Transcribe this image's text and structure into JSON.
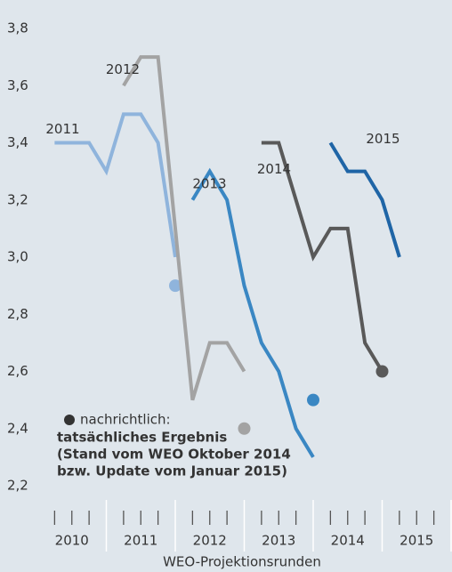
{
  "chart_data": {
    "type": "line",
    "xlabel": "WEO-Projektionsrunden",
    "xlim": [
      2010,
      2016
    ],
    "ylim": [
      2.2,
      3.8
    ],
    "yticks": [
      {
        "value": 2.2,
        "label": "2,2"
      },
      {
        "value": 2.4,
        "label": "2,4"
      },
      {
        "value": 2.6,
        "label": "2,6"
      },
      {
        "value": 2.8,
        "label": "2,8"
      },
      {
        "value": 3.0,
        "label": "3,0"
      },
      {
        "value": 3.2,
        "label": "3,2"
      },
      {
        "value": 3.4,
        "label": "3,4"
      },
      {
        "value": 3.6,
        "label": "3,6"
      },
      {
        "value": 3.8,
        "label": "3,8"
      }
    ],
    "xticks": [
      2010.25,
      2010.5,
      2010.75,
      2011,
      2011.25,
      2011.5,
      2011.75,
      2012,
      2012.25,
      2012.5,
      2012.75,
      2013,
      2013.25,
      2013.5,
      2013.75,
      2014,
      2014.25,
      2014.5,
      2014.75,
      2015,
      2015.25,
      2015.5,
      2015.75,
      2016
    ],
    "x_labels": [
      {
        "value": 2010.5,
        "label": "2010"
      },
      {
        "value": 2011.5,
        "label": "2011"
      },
      {
        "value": 2012.5,
        "label": "2012"
      },
      {
        "value": 2013.5,
        "label": "2013"
      },
      {
        "value": 2014.5,
        "label": "2014"
      },
      {
        "value": 2015.5,
        "label": "2015"
      }
    ],
    "series": [
      {
        "name": "2011",
        "color": "#8fb4dc",
        "x": [
          2010.25,
          2010.5,
          2010.75,
          2011,
          2011.25,
          2011.5,
          2011.75,
          2012
        ],
        "values": [
          3.4,
          3.4,
          3.4,
          3.3,
          3.5,
          3.5,
          3.4,
          3.0
        ],
        "result_x": 2012,
        "result": 2.9
      },
      {
        "name": "2012",
        "color": "#a3a3a3",
        "x": [
          2011.25,
          2011.5,
          2011.75,
          2012,
          2012.25,
          2012.5,
          2012.75,
          2013
        ],
        "values": [
          3.6,
          3.7,
          3.7,
          3.1,
          2.5,
          2.7,
          2.7,
          2.6
        ],
        "result_x": 2013,
        "result": 2.4
      },
      {
        "name": "2013",
        "color": "#3a87c3",
        "x": [
          2012.25,
          2012.5,
          2012.75,
          2013,
          2013.25,
          2013.5,
          2013.75,
          2014
        ],
        "values": [
          3.2,
          3.3,
          3.2,
          2.9,
          2.7,
          2.6,
          2.4,
          2.3
        ],
        "result_x": 2014,
        "result": 2.5
      },
      {
        "name": "2014",
        "color": "#595959",
        "x": [
          2013.25,
          2013.5,
          2013.75,
          2014,
          2014.25,
          2014.5,
          2014.75,
          2015
        ],
        "values": [
          3.4,
          3.4,
          3.2,
          3.0,
          3.1,
          3.1,
          2.7,
          2.6
        ],
        "result_x": 2015,
        "result": 2.6
      },
      {
        "name": "2015",
        "color": "#1f65a6",
        "x": [
          2014.25,
          2014.5,
          2014.75,
          2015,
          2015.25
        ],
        "values": [
          3.4,
          3.3,
          3.3,
          3.2,
          3.0
        ]
      }
    ],
    "note": {
      "head": "nachrichtlich:",
      "lines": [
        "tatsächliches Ergebnis",
        "(Stand vom WEO Oktober 2014",
        "bzw. Update vom Januar 2015)"
      ],
      "color": "#333333"
    }
  }
}
